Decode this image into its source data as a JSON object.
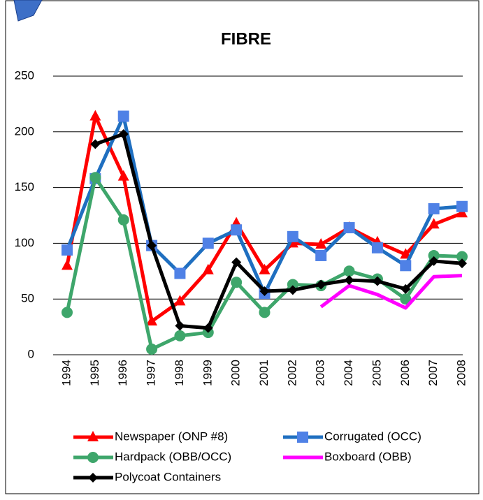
{
  "chart_data": {
    "type": "line",
    "title": "FIBRE",
    "categories": [
      "1994",
      "1995",
      "1996",
      "1997",
      "1998",
      "1999",
      "2000",
      "2001",
      "2002",
      "2003",
      "2004",
      "2005",
      "2006",
      "2007",
      "2008"
    ],
    "ylim": [
      0,
      250
    ],
    "yticks": [
      0,
      50,
      100,
      150,
      200,
      250
    ],
    "grid": true,
    "series": [
      {
        "name": "Newspaper (ONP #8)",
        "color": "#ff0000",
        "marker": "triangle",
        "values": [
          80,
          214,
          160,
          30,
          48,
          76,
          118,
          76,
          100,
          99,
          114,
          101,
          90,
          117,
          127
        ]
      },
      {
        "name": "Corrugated (OCC)",
        "color": "#4f81e6",
        "line_color": "#1f6fc0",
        "marker": "square",
        "values": [
          94,
          158,
          214,
          98,
          73,
          100,
          112,
          55,
          106,
          89,
          114,
          96,
          80,
          131,
          133
        ]
      },
      {
        "name": "Hardpack (OBB/OCC)",
        "color": "#3ea66b",
        "marker": "circle",
        "values": [
          38,
          159,
          121,
          5,
          17,
          20,
          65,
          38,
          63,
          62,
          75,
          68,
          50,
          89,
          88
        ]
      },
      {
        "name": "Boxboard (OBB)",
        "color": "#ff00ff",
        "marker": "none",
        "values": [
          null,
          null,
          null,
          null,
          null,
          null,
          null,
          null,
          null,
          43,
          62,
          54,
          42,
          70,
          71
        ]
      },
      {
        "name": "Polycoat Containers",
        "color": "#000000",
        "marker": "diamond",
        "values": [
          null,
          189,
          198,
          98,
          26,
          24,
          83,
          57,
          58,
          63,
          67,
          66,
          59,
          84,
          82
        ]
      }
    ]
  }
}
